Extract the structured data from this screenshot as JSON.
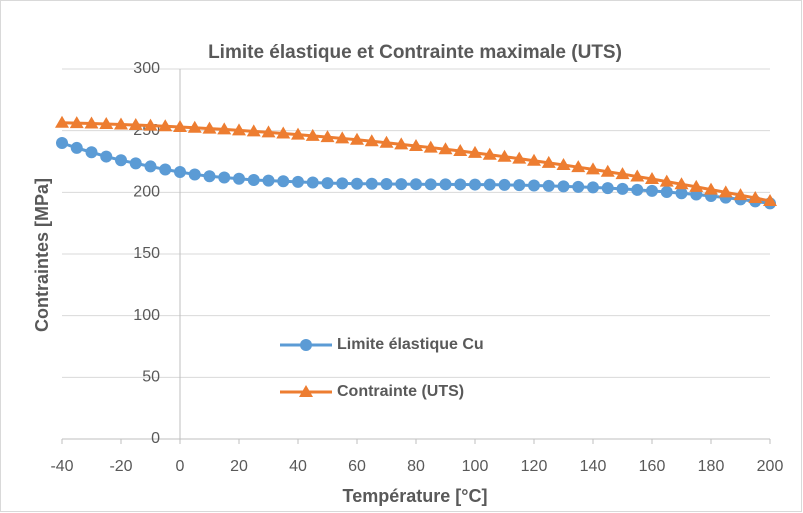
{
  "chart_data": {
    "type": "line",
    "title": "Limite élastique et Contrainte maximale (UTS)",
    "xlabel": "Température [°C]",
    "ylabel": "Contraintes [MPa]",
    "x": [
      -40,
      -35,
      -30,
      -25,
      -20,
      -15,
      -10,
      -5,
      0,
      5,
      10,
      15,
      20,
      25,
      30,
      35,
      40,
      45,
      50,
      55,
      60,
      65,
      70,
      75,
      80,
      85,
      90,
      95,
      100,
      105,
      110,
      115,
      120,
      125,
      130,
      135,
      140,
      145,
      150,
      155,
      160,
      165,
      170,
      175,
      180,
      185,
      190,
      195,
      200
    ],
    "series": [
      {
        "name": "Limite élastique Cu",
        "color": "#5b9bd5",
        "marker": "circle",
        "values": [
          240,
          236,
          232.5,
          229,
          226,
          223.5,
          221,
          218.5,
          216.5,
          214.5,
          213,
          212,
          211,
          210,
          209.5,
          209,
          208.5,
          208,
          207.5,
          207.3,
          207,
          207,
          206.8,
          206.7,
          206.6,
          206.5,
          206.5,
          206.4,
          206.3,
          206.2,
          206,
          205.8,
          205.5,
          205.2,
          204.8,
          204.4,
          204,
          203.4,
          202.8,
          202,
          201.2,
          200.3,
          199.3,
          198.2,
          197,
          195.7,
          194.3,
          192.7,
          191
        ]
      },
      {
        "name": "Contrainte (UTS)",
        "color": "#ed7d31",
        "marker": "triangle",
        "values": [
          256.4,
          256.1,
          255.8,
          255.4,
          255,
          254.6,
          254.1,
          253.6,
          253,
          252.4,
          251.7,
          251,
          250.2,
          249.4,
          248.6,
          247.7,
          246.8,
          245.8,
          244.8,
          243.7,
          242.6,
          241.4,
          240.2,
          238.9,
          237.6,
          236.3,
          234.9,
          233.5,
          232,
          230.5,
          228.9,
          227.3,
          225.6,
          223.9,
          222.2,
          220.4,
          218.6,
          216.7,
          214.8,
          212.8,
          210.8,
          208.7,
          206.6,
          204.4,
          202.2,
          200,
          197.7,
          195.4,
          193
        ]
      }
    ],
    "xlim": [
      -40,
      200
    ],
    "xticks": [
      -40,
      -20,
      0,
      20,
      40,
      60,
      80,
      100,
      120,
      140,
      160,
      180,
      200
    ],
    "ylim": [
      0,
      300
    ],
    "yticks": [
      0,
      50,
      100,
      150,
      200,
      250,
      300
    ],
    "y_axis_crosses": 0,
    "grid": true,
    "legend": "center"
  }
}
